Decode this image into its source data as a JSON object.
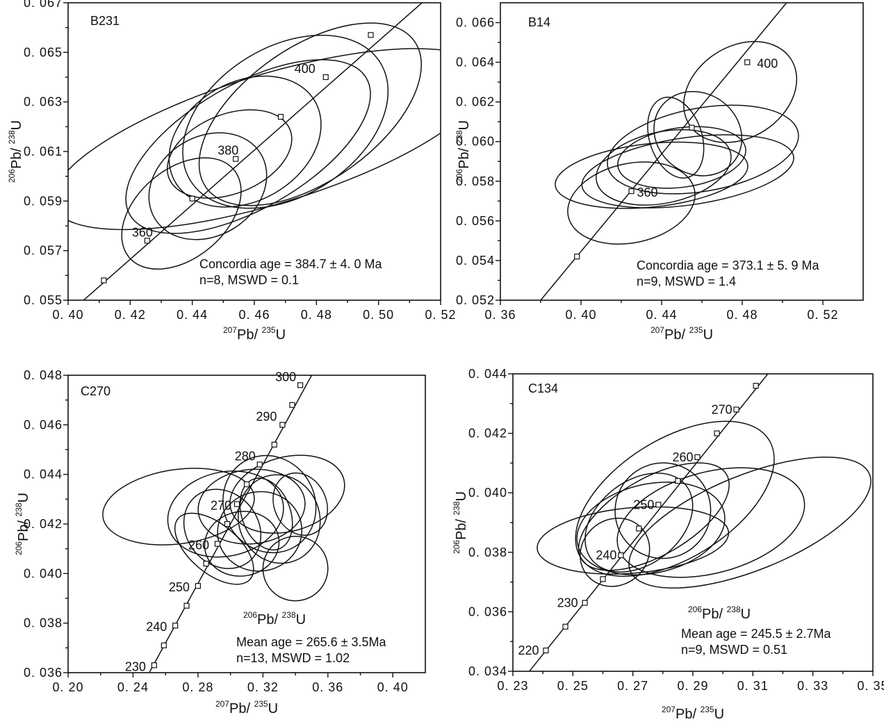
{
  "chart_data": [
    {
      "type": "scatter",
      "subtype": "concordia",
      "panel": "B231",
      "xlabel": {
        "sup": "207",
        "main": "Pb/ ",
        "sup2": "235",
        "end": "U"
      },
      "ylabel": {
        "sup": "206",
        "main": "Pb/ ",
        "sup2": "238",
        "end": "U"
      },
      "xlim": [
        0.4,
        0.52
      ],
      "ylim": [
        0.055,
        0.067
      ],
      "xticks": [
        "0. 40",
        "0. 42",
        "0. 44",
        "0. 46",
        "0. 48",
        "0. 50",
        "0. 52"
      ],
      "xtick_values": [
        0.4,
        0.42,
        0.44,
        0.46,
        0.48,
        0.5,
        0.52
      ],
      "yticks": [
        "0. 055",
        "0. 057",
        "0. 059",
        "0. 061",
        "0. 063",
        "0. 065",
        "0. 067"
      ],
      "ytick_values": [
        0.055,
        0.057,
        0.059,
        0.061,
        0.063,
        0.065,
        0.067
      ],
      "concordia_points": [
        [
          0.4115,
          0.0558
        ],
        [
          0.4255,
          0.0574
        ],
        [
          0.44,
          0.0591
        ],
        [
          0.454,
          0.0607
        ],
        [
          0.4685,
          0.0624
        ],
        [
          0.483,
          0.064
        ],
        [
          0.4975,
          0.0657
        ]
      ],
      "concordia_line": [
        [
          0.405,
          0.055
        ],
        [
          0.514,
          0.067
        ]
      ],
      "age_labels": [
        {
          "text": "360",
          "x": 0.4255,
          "y": 0.0574
        },
        {
          "text": "380",
          "x": 0.454,
          "y": 0.0607
        },
        {
          "text": "400",
          "x": 0.483,
          "y": 0.064
        }
      ],
      "ellipses": [
        {
          "cx": 0.465,
          "cy": 0.0615,
          "rx": 0.073,
          "ry": 0.0026,
          "rot": -17
        },
        {
          "cx": 0.478,
          "cy": 0.0625,
          "rx": 0.041,
          "ry": 0.0027,
          "rot": -35
        },
        {
          "cx": 0.47,
          "cy": 0.0622,
          "rx": 0.036,
          "ry": 0.003,
          "rot": -32
        },
        {
          "cx": 0.458,
          "cy": 0.0612,
          "rx": 0.044,
          "ry": 0.0025,
          "rot": -30
        },
        {
          "cx": 0.457,
          "cy": 0.0614,
          "rx": 0.026,
          "ry": 0.0024,
          "rot": -30
        },
        {
          "cx": 0.452,
          "cy": 0.0609,
          "rx": 0.021,
          "ry": 0.0016,
          "rot": -22
        },
        {
          "cx": 0.445,
          "cy": 0.0596,
          "rx": 0.02,
          "ry": 0.002,
          "rot": -32
        },
        {
          "cx": 0.4365,
          "cy": 0.0585,
          "rx": 0.022,
          "ry": 0.0018,
          "rot": -40
        }
      ],
      "stats": [
        "Concordia age  =  384.7  ± 4. 0 Ma",
        "n=8, MSWD  =  0.1"
      ]
    },
    {
      "type": "scatter",
      "subtype": "concordia",
      "panel": "B14",
      "xlabel": {
        "sup": "207",
        "main": "Pb/ ",
        "sup2": "235",
        "end": "U"
      },
      "ylabel": {
        "sup": "206",
        "main": "Pb/ ",
        "sup2": "238",
        "end": "U"
      },
      "xlim": [
        0.36,
        0.54
      ],
      "ylim": [
        0.052,
        0.067
      ],
      "xticks": [
        "0. 36",
        "0. 40",
        "0. 44",
        "0. 48",
        "0. 52"
      ],
      "xtick_values": [
        0.36,
        0.4,
        0.44,
        0.48,
        0.52
      ],
      "yticks": [
        "0. 052",
        "0. 054",
        "0. 056",
        "0. 058",
        "0. 060",
        "0. 062",
        "0. 064",
        "0. 066"
      ],
      "ytick_values": [
        0.052,
        0.054,
        0.056,
        0.058,
        0.06,
        0.062,
        0.064,
        0.066
      ],
      "concordia_points": [
        [
          0.398,
          0.0542
        ],
        [
          0.425,
          0.0575
        ],
        [
          0.455,
          0.0607
        ],
        [
          0.4825,
          0.064
        ]
      ],
      "concordia_line": [
        [
          0.38,
          0.052
        ],
        [
          0.502,
          0.067
        ]
      ],
      "age_labels": [
        {
          "text": "360",
          "x": 0.425,
          "y": 0.0575
        },
        {
          "text": "400",
          "x": 0.4825,
          "y": 0.064
        }
      ],
      "ellipses": [
        {
          "cx": 0.4605,
          "cy": 0.0596,
          "rx": 0.048,
          "ry": 0.0021,
          "rot": -10
        },
        {
          "cx": 0.453,
          "cy": 0.0585,
          "rx": 0.053,
          "ry": 0.0017,
          "rot": -8
        },
        {
          "cx": 0.435,
          "cy": 0.0583,
          "rx": 0.048,
          "ry": 0.0016,
          "rot": -6
        },
        {
          "cx": 0.441,
          "cy": 0.0587,
          "rx": 0.034,
          "ry": 0.0018,
          "rot": -12
        },
        {
          "cx": 0.45,
          "cy": 0.0592,
          "rx": 0.032,
          "ry": 0.0015,
          "rot": -8
        },
        {
          "cx": 0.425,
          "cy": 0.0569,
          "rx": 0.032,
          "ry": 0.002,
          "rot": -12
        },
        {
          "cx": 0.479,
          "cy": 0.0625,
          "rx": 0.03,
          "ry": 0.0023,
          "rot": -33
        },
        {
          "cx": 0.458,
          "cy": 0.0604,
          "rx": 0.02,
          "ry": 0.0023,
          "rot": -55
        },
        {
          "cx": 0.447,
          "cy": 0.0602,
          "rx": 0.013,
          "ry": 0.0021,
          "rot": -18
        }
      ],
      "stats": [
        "Concordia age  =  373.1  ± 5. 9 Ma",
        "n=9, MSWD  =  1.4"
      ]
    },
    {
      "type": "scatter",
      "subtype": "concordia",
      "panel": "C270",
      "xlabel": {
        "sup": "207",
        "main": "Pb/ ",
        "sup2": "235",
        "end": "U"
      },
      "ylabel": {
        "sup": "206",
        "main": "Pb/ ",
        "sup2": "238",
        "end": "U"
      },
      "inner_label": {
        "sup": "206",
        "main": "Pb/ ",
        "sup2": "238",
        "end": "U"
      },
      "xlim": [
        0.2,
        0.42
      ],
      "ylim": [
        0.036,
        0.048
      ],
      "xticks": [
        "0. 20",
        "0. 24",
        "0. 28",
        "0. 32",
        "0. 36",
        "0. 40"
      ],
      "xtick_values": [
        0.2,
        0.24,
        0.28,
        0.32,
        0.36,
        0.4
      ],
      "yticks": [
        "0. 036",
        "0. 038",
        "0. 040",
        "0. 042",
        "0. 044",
        "0. 046",
        "0. 048"
      ],
      "ytick_values": [
        0.036,
        0.038,
        0.04,
        0.042,
        0.044,
        0.046,
        0.048
      ],
      "concordia_points": [
        [
          0.253,
          0.0363
        ],
        [
          0.259,
          0.0371
        ],
        [
          0.266,
          0.0379
        ],
        [
          0.273,
          0.0387
        ],
        [
          0.28,
          0.0395
        ],
        [
          0.285,
          0.0404
        ],
        [
          0.292,
          0.0412
        ],
        [
          0.298,
          0.042
        ],
        [
          0.304,
          0.0428
        ],
        [
          0.31,
          0.0436
        ],
        [
          0.318,
          0.0444
        ],
        [
          0.327,
          0.0452
        ],
        [
          0.332,
          0.046
        ],
        [
          0.338,
          0.0468
        ],
        [
          0.343,
          0.0476
        ]
      ],
      "concordia_line": [
        [
          0.25,
          0.036
        ],
        [
          0.35,
          0.048
        ]
      ],
      "age_labels": [
        {
          "text": "230",
          "x": 0.253,
          "y": 0.0363
        },
        {
          "text": "240",
          "x": 0.266,
          "y": 0.0379
        },
        {
          "text": "250",
          "x": 0.28,
          "y": 0.0395
        },
        {
          "text": "260",
          "x": 0.292,
          "y": 0.0412
        },
        {
          "text": "270",
          "x": 0.304,
          "y": 0.0428
        },
        {
          "text": "280",
          "x": 0.318,
          "y": 0.0444
        },
        {
          "text": "290",
          "x": 0.332,
          "y": 0.046
        },
        {
          "text": "300",
          "x": 0.343,
          "y": 0.0476
        }
      ],
      "ellipses": [
        {
          "cx": 0.268,
          "cy": 0.0427,
          "rx": 0.047,
          "ry": 0.0015,
          "rot": -8
        },
        {
          "cx": 0.297,
          "cy": 0.0424,
          "rx": 0.036,
          "ry": 0.0017,
          "rot": -12
        },
        {
          "cx": 0.313,
          "cy": 0.0427,
          "rx": 0.033,
          "ry": 0.0015,
          "rot": -6
        },
        {
          "cx": 0.335,
          "cy": 0.0432,
          "rx": 0.036,
          "ry": 0.0015,
          "rot": -15
        },
        {
          "cx": 0.33,
          "cy": 0.0422,
          "rx": 0.025,
          "ry": 0.0018,
          "rot": -18
        },
        {
          "cx": 0.318,
          "cy": 0.0417,
          "rx": 0.026,
          "ry": 0.0016,
          "rot": -12
        },
        {
          "cx": 0.307,
          "cy": 0.0412,
          "rx": 0.023,
          "ry": 0.0013,
          "rot": -10
        },
        {
          "cx": 0.295,
          "cy": 0.0418,
          "rx": 0.022,
          "ry": 0.0017,
          "rot": -40
        },
        {
          "cx": 0.29,
          "cy": 0.041,
          "rx": 0.015,
          "ry": 0.0019,
          "rot": -50
        },
        {
          "cx": 0.322,
          "cy": 0.0424,
          "rx": 0.015,
          "ry": 0.0015,
          "rot": -20
        },
        {
          "cx": 0.343,
          "cy": 0.0428,
          "rx": 0.016,
          "ry": 0.0013,
          "rot": -25
        },
        {
          "cx": 0.324,
          "cy": 0.0428,
          "rx": 0.028,
          "ry": 0.002,
          "rot": -30
        },
        {
          "cx": 0.34,
          "cy": 0.0402,
          "rx": 0.02,
          "ry": 0.0013,
          "rot": -15
        }
      ],
      "stats": [
        "Mean age  =  265.6  ± 3.5Ma",
        "n=13, MSWD  =  1.02"
      ]
    },
    {
      "type": "scatter",
      "subtype": "concordia",
      "panel": "C134",
      "xlabel": {
        "sup": "207",
        "main": "Pb/ ",
        "sup2": "235",
        "end": "U"
      },
      "ylabel": {
        "sup": "206",
        "main": "Pb/ ",
        "sup2": "238",
        "end": "U"
      },
      "inner_label": {
        "sup": "206",
        "main": "Pb/ ",
        "sup2": "238",
        "end": "U"
      },
      "xlim": [
        0.23,
        0.35
      ],
      "ylim": [
        0.034,
        0.044
      ],
      "xticks": [
        "0. 23",
        "0. 25",
        "0. 27",
        "0. 29",
        "0. 31",
        "0. 33",
        "0. 35"
      ],
      "xtick_values": [
        0.23,
        0.25,
        0.27,
        0.29,
        0.31,
        0.33,
        0.35
      ],
      "yticks": [
        "0. 034",
        "0. 036",
        "0. 038",
        "0. 040",
        "0. 042",
        "0. 044"
      ],
      "ytick_values": [
        0.034,
        0.036,
        0.038,
        0.04,
        0.042,
        0.044
      ],
      "concordia_points": [
        [
          0.241,
          0.0347
        ],
        [
          0.2475,
          0.0355
        ],
        [
          0.254,
          0.0363
        ],
        [
          0.26,
          0.0371
        ],
        [
          0.266,
          0.0379
        ],
        [
          0.272,
          0.0388
        ],
        [
          0.2785,
          0.0396
        ],
        [
          0.285,
          0.0404
        ],
        [
          0.2915,
          0.0412
        ],
        [
          0.298,
          0.042
        ],
        [
          0.3045,
          0.0428
        ],
        [
          0.311,
          0.0436
        ]
      ],
      "concordia_line": [
        [
          0.2355,
          0.034
        ],
        [
          0.315,
          0.044
        ]
      ],
      "age_labels": [
        {
          "text": "220",
          "x": 0.241,
          "y": 0.0347
        },
        {
          "text": "230",
          "x": 0.254,
          "y": 0.0363
        },
        {
          "text": "240",
          "x": 0.266,
          "y": 0.0379
        },
        {
          "text": "250",
          "x": 0.2785,
          "y": 0.0396
        },
        {
          "text": "260",
          "x": 0.2915,
          "y": 0.0412
        },
        {
          "text": "270",
          "x": 0.3045,
          "y": 0.0428
        }
      ],
      "ellipses": [
        {
          "cx": 0.284,
          "cy": 0.0398,
          "rx": 0.037,
          "ry": 0.002,
          "rot": -32
        },
        {
          "cx": 0.309,
          "cy": 0.039,
          "rx": 0.043,
          "ry": 0.0016,
          "rot": -22
        },
        {
          "cx": 0.296,
          "cy": 0.039,
          "rx": 0.032,
          "ry": 0.0017,
          "rot": -15
        },
        {
          "cx": 0.276,
          "cy": 0.0388,
          "rx": 0.025,
          "ry": 0.0015,
          "rot": -12
        },
        {
          "cx": 0.27,
          "cy": 0.0384,
          "rx": 0.032,
          "ry": 0.0011,
          "rot": -5
        },
        {
          "cx": 0.277,
          "cy": 0.0392,
          "rx": 0.028,
          "ry": 0.0013,
          "rot": -30
        },
        {
          "cx": 0.272,
          "cy": 0.039,
          "rx": 0.02,
          "ry": 0.0014,
          "rot": -38
        },
        {
          "cx": 0.28,
          "cy": 0.0394,
          "rx": 0.016,
          "ry": 0.0016,
          "rot": -45
        },
        {
          "cx": 0.264,
          "cy": 0.038,
          "rx": 0.012,
          "ry": 0.0011,
          "rot": -40
        }
      ],
      "stats": [
        "Mean age  =  245.5  ± 2.7Ma",
        "n=9, MSWD  =  0.51"
      ]
    }
  ]
}
